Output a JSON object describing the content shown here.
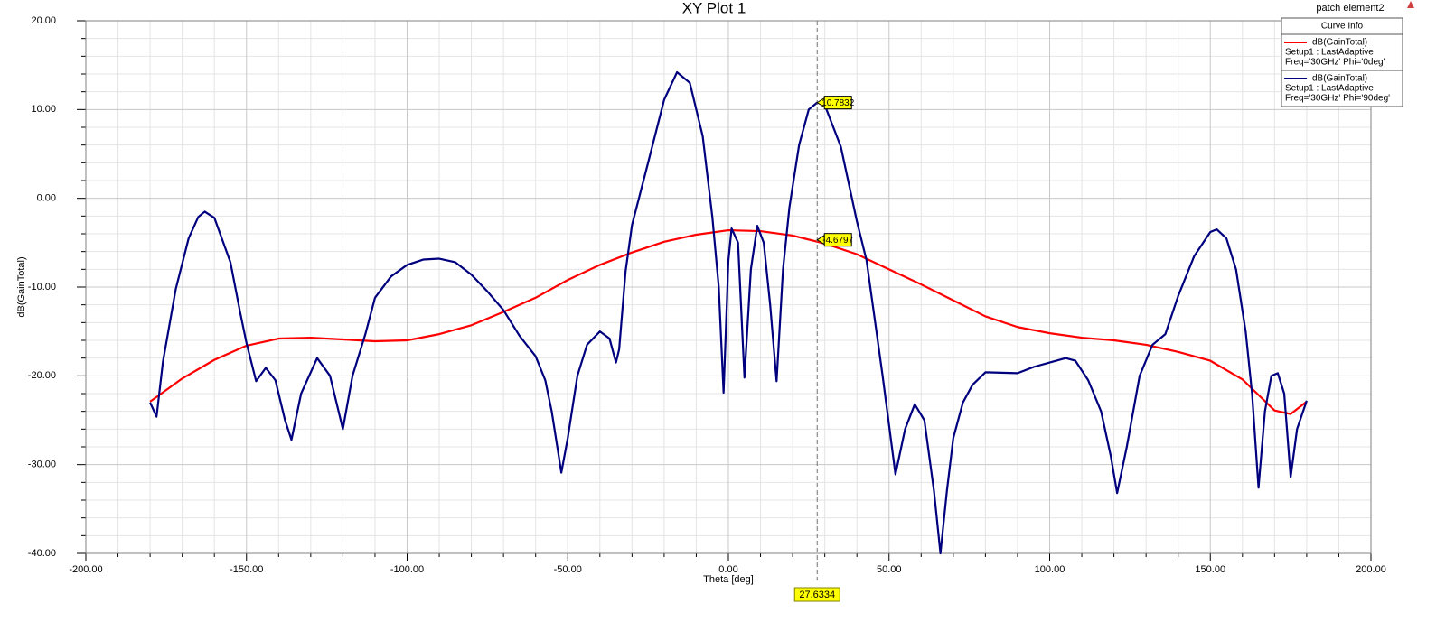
{
  "chart_data": {
    "type": "line",
    "title": "XY Plot 1",
    "project": "patch element2",
    "legend_title": "Curve Info",
    "xlabel": "Theta [deg]",
    "ylabel": "dB(GainTotal)",
    "xlim": [
      -200,
      200
    ],
    "ylim": [
      -40,
      20
    ],
    "xticks": [
      {
        "value": -200,
        "label": "-200.00"
      },
      {
        "value": -150,
        "label": "-150.00"
      },
      {
        "value": -100,
        "label": "-100.00"
      },
      {
        "value": -50,
        "label": "-50.00"
      },
      {
        "value": 0,
        "label": "0.00"
      },
      {
        "value": 50,
        "label": "50.00"
      },
      {
        "value": 100,
        "label": "100.00"
      },
      {
        "value": 150,
        "label": "150.00"
      },
      {
        "value": 200,
        "label": "200.00"
      }
    ],
    "yticks": [
      {
        "value": 20,
        "label": "20.00"
      },
      {
        "value": 10,
        "label": "10.00"
      },
      {
        "value": 0,
        "label": "0.00"
      },
      {
        "value": -10,
        "label": "-10.00"
      },
      {
        "value": -20,
        "label": "-20.00"
      },
      {
        "value": -30,
        "label": "-30.00"
      },
      {
        "value": -40,
        "label": "-40.00"
      }
    ],
    "grid": true,
    "legend": "top-right",
    "marker_x": 27.6334,
    "marker_values": [
      10.7832,
      -4.6797
    ],
    "series": [
      {
        "name": "dB(GainTotal)",
        "setup": "Setup1 : LastAdaptive",
        "variation": "Freq='30GHz' Phi='0deg'",
        "color": "#ff0000",
        "x": [
          -180,
          -170,
          -160,
          -150,
          -140,
          -130,
          -120,
          -110,
          -100,
          -90,
          -80,
          -70,
          -60,
          -50,
          -40,
          -30,
          -20,
          -10,
          0,
          10,
          20,
          30,
          40,
          50,
          60,
          70,
          80,
          90,
          100,
          110,
          120,
          130,
          140,
          150,
          160,
          170,
          175,
          180
        ],
        "values": [
          -22.9,
          -20.3,
          -18.2,
          -16.6,
          -15.8,
          -15.7,
          -15.9,
          -16.1,
          -16.0,
          -15.3,
          -14.3,
          -12.8,
          -11.2,
          -9.2,
          -7.5,
          -6.1,
          -4.9,
          -4.1,
          -3.6,
          -3.7,
          -4.2,
          -5.1,
          -6.3,
          -8.0,
          -9.7,
          -11.5,
          -13.3,
          -14.5,
          -15.2,
          -15.7,
          -16.0,
          -16.5,
          -17.3,
          -18.3,
          -20.4,
          -23.9,
          -24.3,
          -22.9
        ]
      },
      {
        "name": "dB(GainTotal)",
        "setup": "Setup1 : LastAdaptive",
        "variation": "Freq='30GHz' Phi='90deg'",
        "color": "#00007f",
        "x": [
          -180,
          -178,
          -176,
          -172,
          -168,
          -165,
          -163,
          -160,
          -155,
          -152,
          -150,
          -147,
          -144,
          -141,
          -138,
          -136,
          -133,
          -128,
          -124,
          -120,
          -117,
          -113,
          -110,
          -105,
          -100,
          -95,
          -90,
          -85,
          -80,
          -75,
          -70,
          -65,
          -60,
          -57,
          -55,
          -52,
          -50,
          -47,
          -44,
          -40,
          -37,
          -35,
          -34,
          -32,
          -30,
          -25,
          -20,
          -16,
          -12,
          -8,
          -5,
          -3,
          -1.5,
          0,
          1,
          3,
          5,
          7,
          9,
          11,
          13,
          15,
          17,
          19,
          22,
          25,
          27.6334,
          30,
          35,
          40,
          43,
          45,
          48,
          52,
          55,
          58,
          61,
          64,
          66,
          68,
          70,
          73,
          76,
          80,
          90,
          95,
          100,
          105,
          108,
          112,
          116,
          119,
          121,
          124,
          128,
          132,
          136,
          140,
          145,
          150,
          152,
          155,
          158,
          161,
          163,
          165,
          167,
          169,
          171,
          173,
          175,
          177,
          180
        ],
        "values": [
          -23,
          -24.6,
          -18.4,
          -10.2,
          -4.5,
          -2.1,
          -1.5,
          -2.2,
          -7.2,
          -12.8,
          -16.3,
          -20.6,
          -19.1,
          -20.5,
          -25,
          -27.2,
          -22,
          -18,
          -20,
          -26,
          -20,
          -15.3,
          -11.2,
          -8.8,
          -7.5,
          -6.9,
          -6.8,
          -7.2,
          -8.6,
          -10.5,
          -12.6,
          -15.5,
          -17.8,
          -20.5,
          -24,
          -30.9,
          -27,
          -20,
          -16.5,
          -15,
          -15.8,
          -18.5,
          -17,
          -8.2,
          -3,
          4,
          11.1,
          14.2,
          13,
          7,
          -2.1,
          -10,
          -21.9,
          -7,
          -3.4,
          -5,
          -20.2,
          -8,
          -3.1,
          -5,
          -12,
          -20.6,
          -8,
          -1,
          6,
          10,
          10.7832,
          10.5,
          5.8,
          -2.6,
          -7,
          -12.2,
          -20,
          -31.1,
          -26,
          -23.2,
          -25,
          -33,
          -40,
          -33,
          -27,
          -23,
          -21,
          -19.6,
          -19.7,
          -19,
          -18.5,
          -18,
          -18.3,
          -20.5,
          -24,
          -29,
          -33.2,
          -28,
          -20,
          -16.5,
          -15.3,
          -11,
          -6.5,
          -3.8,
          -3.5,
          -4.5,
          -8,
          -15,
          -22,
          -32.6,
          -24,
          -20,
          -19.7,
          -22,
          -31.4,
          -26,
          -22.8
        ]
      }
    ]
  }
}
